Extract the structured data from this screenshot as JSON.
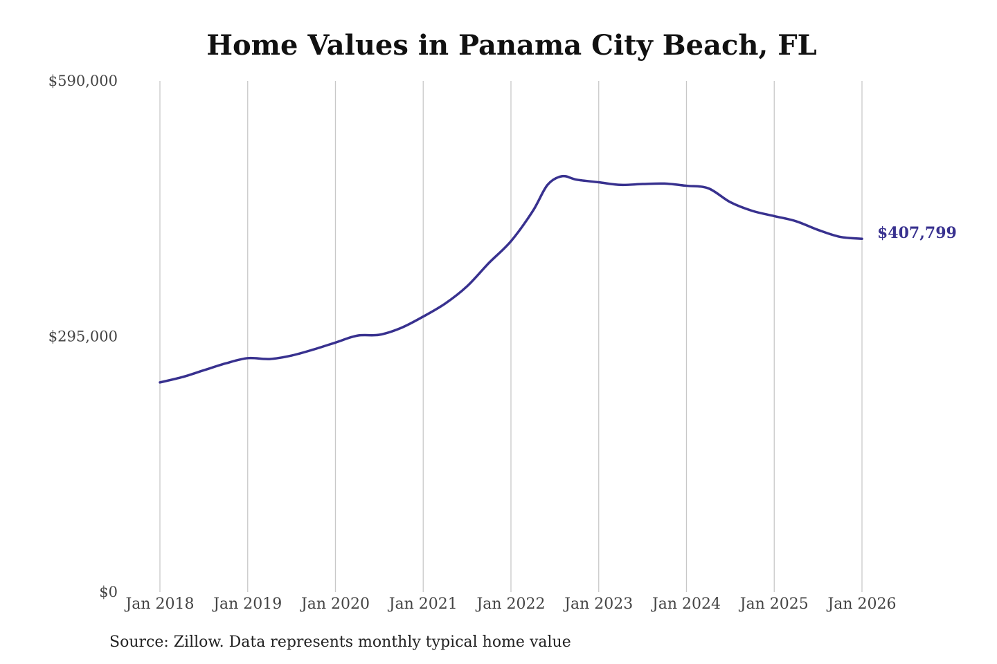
{
  "chart_data": {
    "type": "line",
    "title": "Home Values in Panama City Beach, FL",
    "source": "Source: Zillow. Data represents monthly typical home value",
    "ylim": [
      0,
      590000
    ],
    "y_ticks": [
      {
        "value": 0,
        "label": "$0"
      },
      {
        "value": 295000,
        "label": "$295,000"
      },
      {
        "value": 590000,
        "label": "$590,000"
      }
    ],
    "x_ticks": [
      {
        "value": "2018-01",
        "label": "Jan 2018"
      },
      {
        "value": "2019-01",
        "label": "Jan 2019"
      },
      {
        "value": "2020-01",
        "label": "Jan 2020"
      },
      {
        "value": "2021-01",
        "label": "Jan 2021"
      },
      {
        "value": "2022-01",
        "label": "Jan 2022"
      },
      {
        "value": "2023-01",
        "label": "Jan 2023"
      },
      {
        "value": "2024-01",
        "label": "Jan 2024"
      },
      {
        "value": "2025-01",
        "label": "Jan 2025"
      },
      {
        "value": "2026-01",
        "label": "Jan 2026"
      }
    ],
    "grid": "vertical",
    "series": [
      {
        "color": "#38318f",
        "end_label": "$407,799",
        "points": [
          {
            "x": "2018-01",
            "y": 242000
          },
          {
            "x": "2018-04",
            "y": 248000
          },
          {
            "x": "2018-07",
            "y": 256000
          },
          {
            "x": "2018-10",
            "y": 264000
          },
          {
            "x": "2019-01",
            "y": 270000
          },
          {
            "x": "2019-04",
            "y": 269000
          },
          {
            "x": "2019-07",
            "y": 273000
          },
          {
            "x": "2019-10",
            "y": 280000
          },
          {
            "x": "2020-01",
            "y": 288000
          },
          {
            "x": "2020-04",
            "y": 296000
          },
          {
            "x": "2020-07",
            "y": 297000
          },
          {
            "x": "2020-10",
            "y": 305000
          },
          {
            "x": "2021-01",
            "y": 318000
          },
          {
            "x": "2021-04",
            "y": 333000
          },
          {
            "x": "2021-07",
            "y": 353000
          },
          {
            "x": "2021-10",
            "y": 380000
          },
          {
            "x": "2022-01",
            "y": 405000
          },
          {
            "x": "2022-04",
            "y": 440000
          },
          {
            "x": "2022-06",
            "y": 470000
          },
          {
            "x": "2022-08",
            "y": 480000
          },
          {
            "x": "2022-10",
            "y": 476000
          },
          {
            "x": "2023-01",
            "y": 473000
          },
          {
            "x": "2023-04",
            "y": 470000
          },
          {
            "x": "2023-07",
            "y": 471000
          },
          {
            "x": "2023-10",
            "y": 471500
          },
          {
            "x": "2024-01",
            "y": 469000
          },
          {
            "x": "2024-04",
            "y": 466000
          },
          {
            "x": "2024-07",
            "y": 450000
          },
          {
            "x": "2024-10",
            "y": 440000
          },
          {
            "x": "2025-01",
            "y": 434000
          },
          {
            "x": "2025-04",
            "y": 428000
          },
          {
            "x": "2025-07",
            "y": 418000
          },
          {
            "x": "2025-10",
            "y": 410000
          },
          {
            "x": "2026-01",
            "y": 407799
          }
        ]
      }
    ]
  }
}
